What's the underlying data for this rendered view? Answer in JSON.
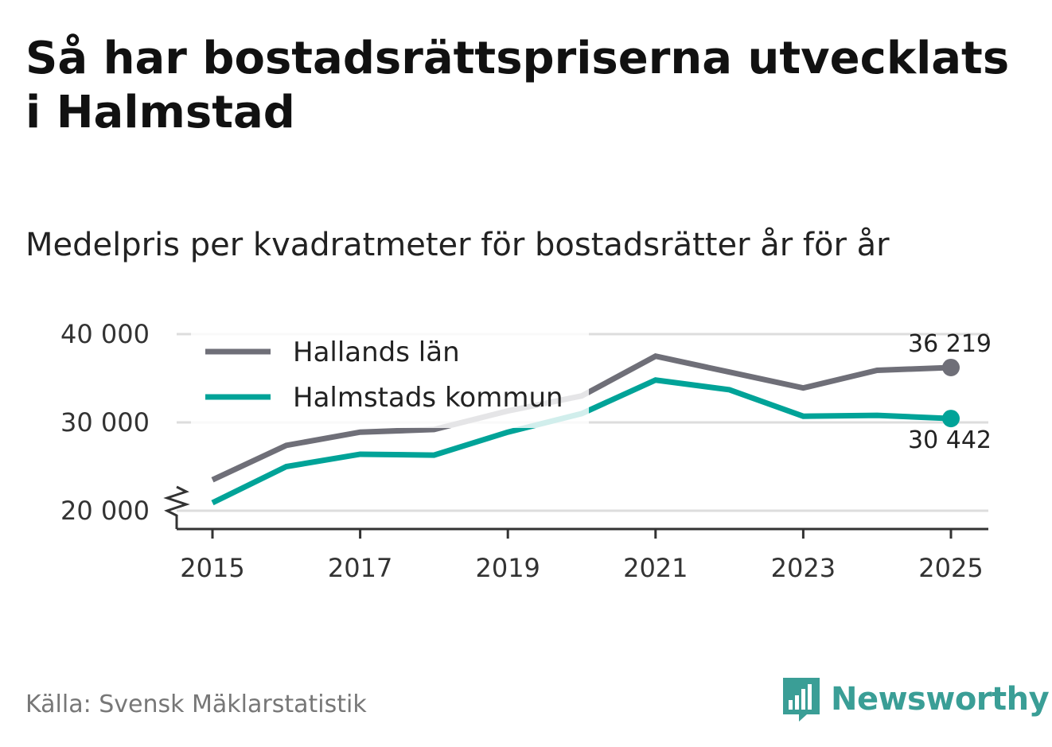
{
  "title": "Så har bostadsrättspriserna utvecklats i Halmstad",
  "subtitle": "Medelpris per kvadratmeter för bostadsrätter år för år",
  "source": "Källa: Svensk Mäklarstatistik",
  "brand": {
    "name": "Newsworthy",
    "icon": "newsworthy-logo-icon",
    "color": "#3a9e96"
  },
  "chart_data": {
    "type": "line",
    "title": "Så har bostadsrättspriserna utvecklats i Halmstad",
    "subtitle": "Medelpris per kvadratmeter för bostadsrätter år för år",
    "xlabel": "",
    "ylabel": "",
    "x": [
      2015,
      2016,
      2017,
      2018,
      2019,
      2020,
      2021,
      2022,
      2023,
      2024,
      2025
    ],
    "x_tick_labels": [
      "2015",
      "2017",
      "2019",
      "2021",
      "2023",
      "2025"
    ],
    "y_ticks": [
      20000,
      30000,
      40000
    ],
    "y_tick_labels": [
      "20 000",
      "30 000",
      "40 000"
    ],
    "ylim": [
      17800,
      40000
    ],
    "axis_break": true,
    "grid": true,
    "legend_position": "top-left",
    "series": [
      {
        "name": "Hallands län",
        "color": "#6f6f78",
        "values": [
          23500,
          27400,
          28900,
          29200,
          31300,
          33000,
          37500,
          35700,
          33900,
          35900,
          36219
        ],
        "end_label": "36 219"
      },
      {
        "name": "Halmstads kommun",
        "color": "#00a398",
        "values": [
          20900,
          25000,
          26400,
          26300,
          28900,
          31000,
          34800,
          33700,
          30700,
          30800,
          30442
        ],
        "end_label": "30 442"
      }
    ]
  }
}
